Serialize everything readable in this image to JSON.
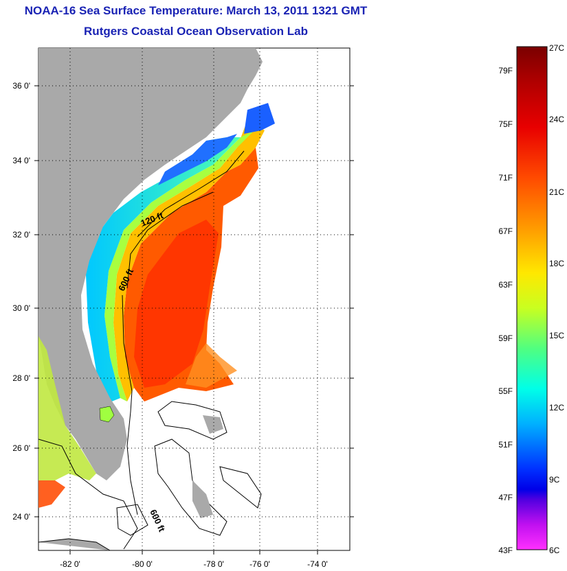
{
  "header": {
    "title": "NOAA-16 Sea Surface Temperature:  March 13, 2011 1321 GMT",
    "subtitle": "Rutgers Coastal Ocean Observation Lab"
  },
  "map": {
    "lat_labels": [
      "36 0'",
      "34 0'",
      "32 0'",
      "30 0'",
      "28 0'",
      "26 0'",
      "24 0'"
    ],
    "lon_labels": [
      "-82 0'",
      "-80 0'",
      "-78 0'",
      "-76 0'",
      "-74 0'"
    ],
    "contour_labels": [
      "120 ft",
      "600 ft",
      "600 ft"
    ],
    "land_color": "#a9a9a9"
  },
  "colorbar": {
    "f_labels": [
      "79F",
      "75F",
      "71F",
      "67F",
      "63F",
      "59F",
      "55F",
      "51F",
      "47F",
      "43F"
    ],
    "c_labels": [
      "27C",
      "24C",
      "21C",
      "18C",
      "15C",
      "12C",
      "9C",
      "6C"
    ],
    "colors": [
      "#7a0000",
      "#d40000",
      "#ff3a00",
      "#ff8a00",
      "#ffd000",
      "#e8ff10",
      "#a0ff40",
      "#30ffc0",
      "#00e8ff",
      "#0090ff",
      "#0020ff",
      "#2000e0",
      "#9000e0",
      "#ff20ff"
    ]
  }
}
